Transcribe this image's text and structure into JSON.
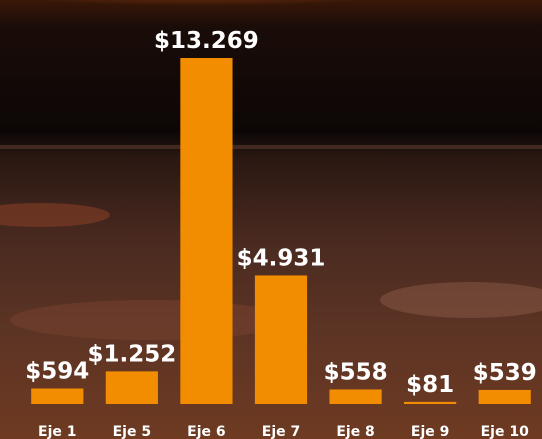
{
  "chart_data": {
    "type": "bar",
    "categories": [
      "Eje 1",
      "Eje 5",
      "Eje 6",
      "Eje 7",
      "Eje 8",
      "Eje 9",
      "Eje 10"
    ],
    "values": [
      594,
      1252,
      13269,
      4931,
      558,
      81,
      539
    ],
    "value_labels": [
      "$594",
      "$1.252",
      "$13.269",
      "$4.931",
      "$558",
      "$81",
      "$539"
    ],
    "color": "#f28c00"
  }
}
